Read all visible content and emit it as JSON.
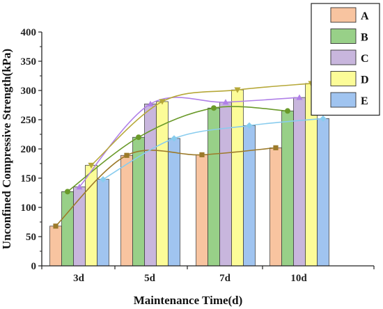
{
  "chart_data": {
    "type": "bar",
    "title": "",
    "xlabel": "Maintenance Time(d)",
    "ylabel": "Unconfined Compressive Strength(kPa)",
    "ylim": [
      0,
      400
    ],
    "yticks": [
      0,
      50,
      100,
      150,
      200,
      250,
      300,
      350,
      400
    ],
    "categories": [
      "3d",
      "5d",
      "7d",
      "10d"
    ],
    "legend_position": "top-right",
    "overlay": "smoothed trend line with point markers per series",
    "series": [
      {
        "name": "A",
        "values": [
          68,
          189,
          190,
          202
        ],
        "bar_color": "#f8c4a0",
        "line_color": "#9c7a2a",
        "marker": "square"
      },
      {
        "name": "B",
        "values": [
          127,
          220,
          270,
          265
        ],
        "bar_color": "#98d088",
        "line_color": "#6a9a2a",
        "marker": "circle"
      },
      {
        "name": "C",
        "values": [
          135,
          277,
          280,
          288
        ],
        "bar_color": "#c8b6dd",
        "line_color": "#b080e8",
        "marker": "triangle-up"
      },
      {
        "name": "D",
        "values": [
          172,
          281,
          301,
          312
        ],
        "bar_color": "#fcfc98",
        "line_color": "#b6a838",
        "marker": "triangle-down"
      },
      {
        "name": "E",
        "values": [
          148,
          218,
          240,
          252
        ],
        "bar_color": "#a0c4f0",
        "line_color": "#88ccee",
        "marker": "diamond"
      }
    ]
  }
}
